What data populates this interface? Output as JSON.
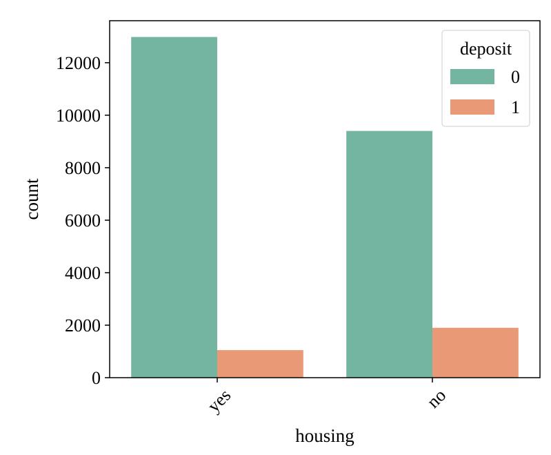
{
  "chart_data": {
    "type": "bar",
    "title": "",
    "xlabel": "housing",
    "ylabel": "count",
    "categories": [
      "yes",
      "no"
    ],
    "series": [
      {
        "name": "0",
        "values": [
          12980,
          9400
        ],
        "color": "#73b5a0"
      },
      {
        "name": "1",
        "values": [
          1050,
          1900
        ],
        "color": "#e99975"
      }
    ],
    "ylim": [
      0,
      13600
    ],
    "yticks": [
      0,
      2000,
      4000,
      6000,
      8000,
      10000,
      12000
    ],
    "grid": false,
    "legend": {
      "title": "deposit",
      "placement": "top-right"
    }
  }
}
